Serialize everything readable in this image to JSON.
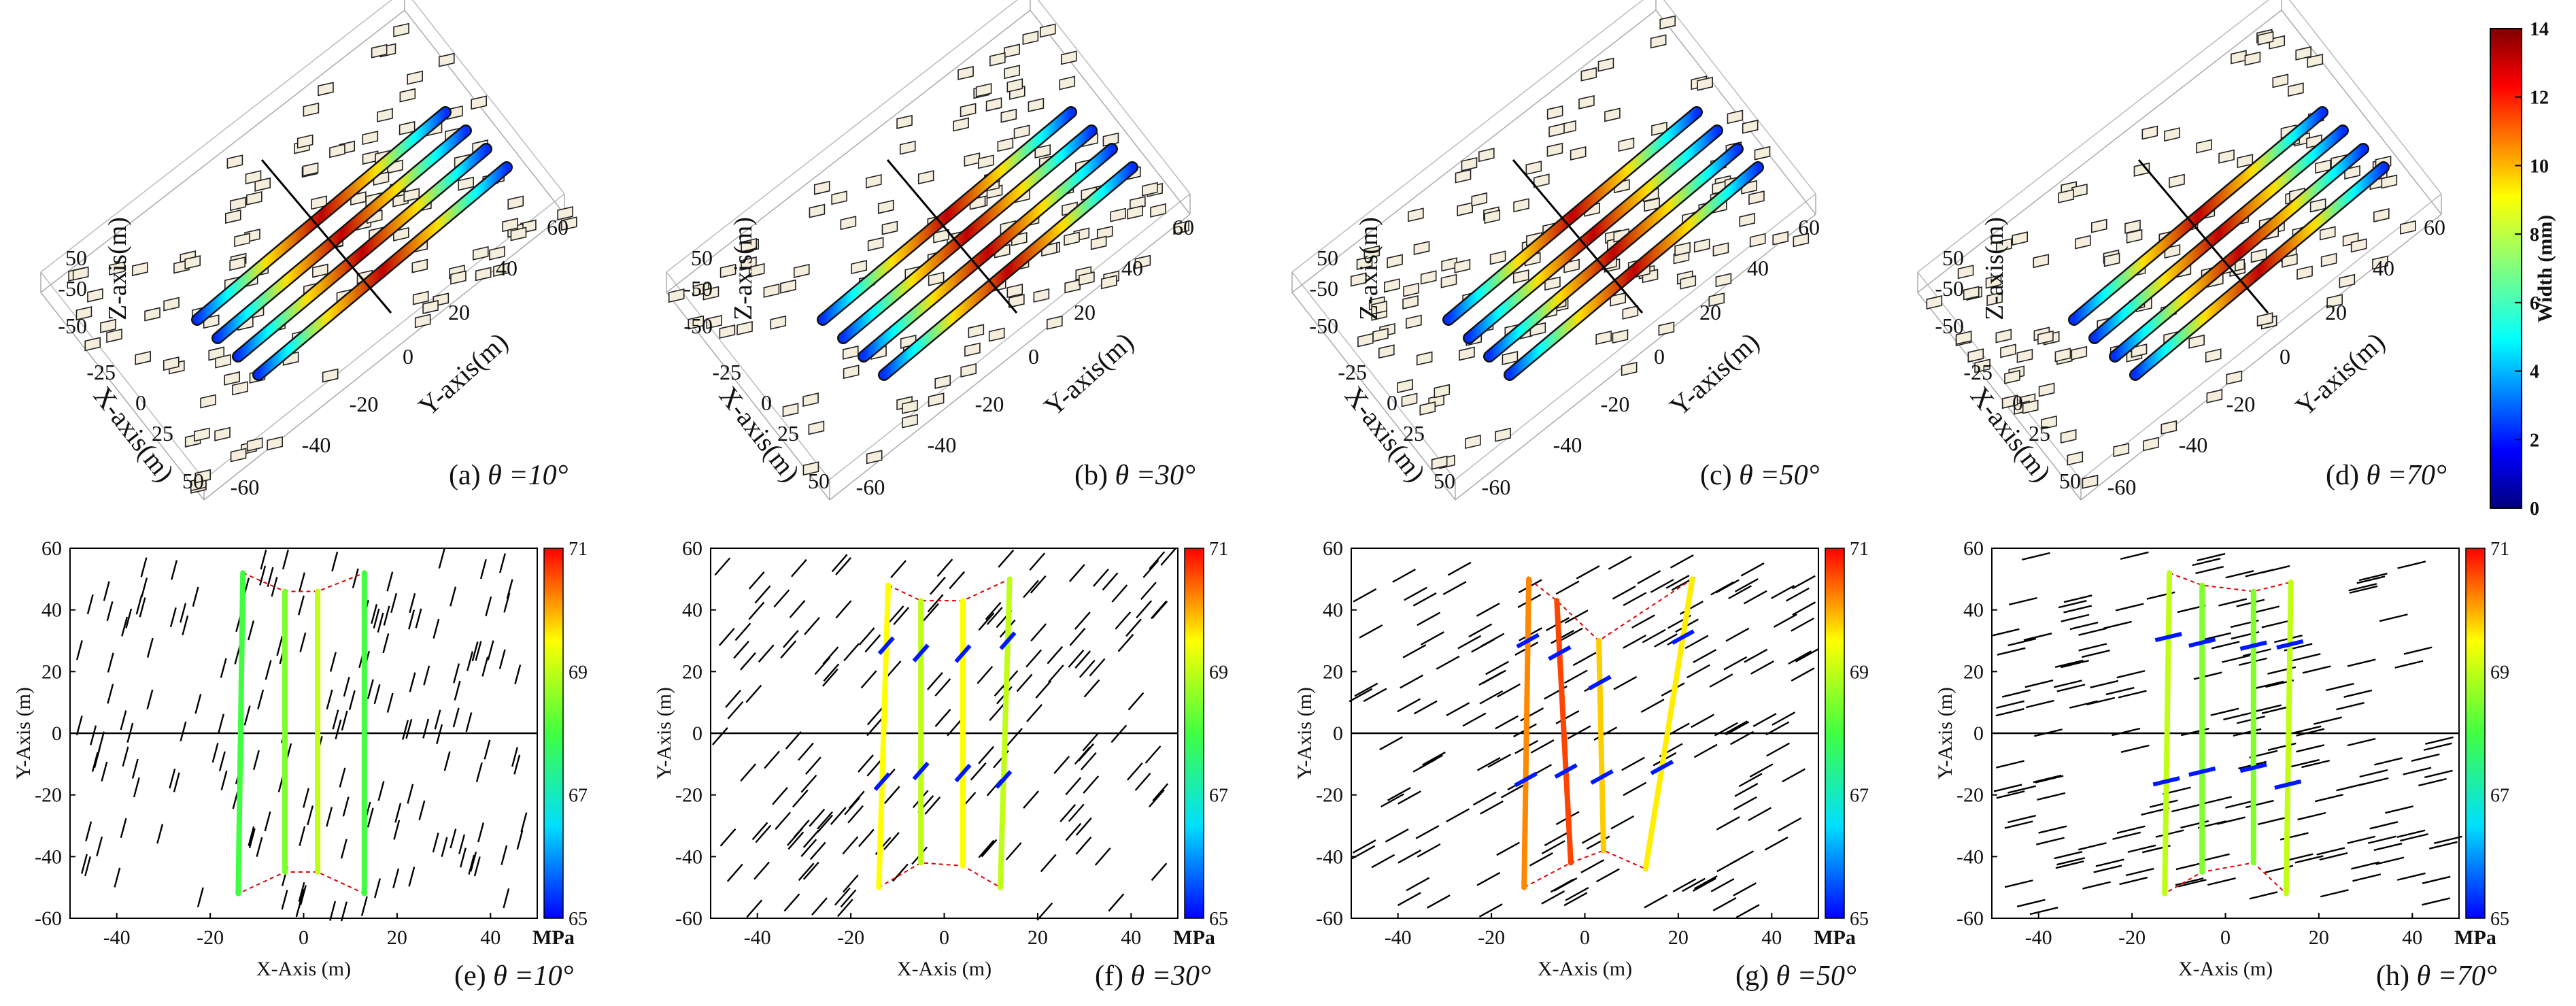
{
  "figure": {
    "description_shown": false
  },
  "chart_data": [
    {
      "type": "3d-fracture",
      "id": "a",
      "caption_label": "(a)",
      "caption_theta": "θ =10°",
      "theta_deg": 10,
      "xlabel": "X-axis(m)",
      "ylabel": "Y-axis(m)",
      "zlabel": "Z-axis(m)",
      "x_ticks": [
        "-25",
        "0",
        "25",
        "50"
      ],
      "y_ticks": [
        "-60",
        "-40",
        "-20",
        "0",
        "20",
        "40",
        "60"
      ],
      "z_ticks": [
        "50",
        "-50",
        "-50"
      ],
      "fracture_count": 4
    },
    {
      "type": "3d-fracture",
      "id": "b",
      "caption_label": "(b)",
      "caption_theta": "θ =30°",
      "theta_deg": 30,
      "xlabel": "X-axis(m)",
      "ylabel": "Y-axis(m)",
      "zlabel": "Z-axis(m)",
      "x_ticks": [
        "-25",
        "0",
        "25",
        "50"
      ],
      "y_ticks": [
        "-60",
        "-40",
        "-20",
        "0",
        "20",
        "40",
        "60"
      ],
      "z_ticks": [
        "50",
        "-50",
        "-50"
      ],
      "fracture_count": 4
    },
    {
      "type": "3d-fracture",
      "id": "c",
      "caption_label": "(c)",
      "caption_theta": "θ =50°",
      "theta_deg": 50,
      "xlabel": "X-axis(m)",
      "ylabel": "Y-axis(m)",
      "zlabel": "Z-axis(m)",
      "x_ticks": [
        "-25",
        "0",
        "25",
        "50"
      ],
      "y_ticks": [
        "-60",
        "-40",
        "-20",
        "0",
        "20",
        "40",
        "60"
      ],
      "z_ticks": [
        "50",
        "-50",
        "-50"
      ],
      "fracture_count": 4
    },
    {
      "type": "3d-fracture",
      "id": "d",
      "caption_label": "(d)",
      "caption_theta": "θ =70°",
      "theta_deg": 70,
      "xlabel": "X-axis(m)",
      "ylabel": "Y-axis(m)",
      "zlabel": "Z-axis(m)",
      "x_ticks": [
        "-25",
        "0",
        "25",
        "50"
      ],
      "y_ticks": [
        "-60",
        "-40",
        "-20",
        "0",
        "20",
        "40",
        "60"
      ],
      "z_ticks": [
        "50",
        "-50",
        "-50"
      ],
      "fracture_count": 4
    },
    {
      "type": "fracture-map",
      "id": "e",
      "caption_label": "(e)",
      "caption_theta": "θ =10°",
      "theta_deg": 10,
      "xlabel": "X-Axis (m)",
      "ylabel": "Y-Axis (m)",
      "xlim": [
        -50,
        50
      ],
      "ylim": [
        -60,
        60
      ],
      "x_ticks": [
        "-40",
        "-20",
        "0",
        "20",
        "40"
      ],
      "y_ticks": [
        "60",
        "40",
        "20",
        "0",
        "-20",
        "-40",
        "-60"
      ],
      "colorbar": {
        "ticks": [
          "71",
          "69",
          "67",
          "65"
        ],
        "min": 65,
        "max": 71,
        "unit": "MPa"
      },
      "fractures": [
        {
          "x_start": -14,
          "x_end": -13,
          "y_start": -52,
          "y_end": 52,
          "stress": 68
        },
        {
          "x_start": -4,
          "x_end": -4,
          "y_start": -45,
          "y_end": 46,
          "stress": 68.5
        },
        {
          "x_start": 3,
          "x_end": 3,
          "y_start": -45,
          "y_end": 46,
          "stress": 69
        },
        {
          "x_start": 13,
          "x_end": 13,
          "y_start": -52,
          "y_end": 52,
          "stress": 68
        }
      ]
    },
    {
      "type": "fracture-map",
      "id": "f",
      "caption_label": "(f)",
      "caption_theta": "θ =30°",
      "theta_deg": 30,
      "xlabel": "X-Axis (m)",
      "ylabel": "Y-Axis (m)",
      "xlim": [
        -50,
        50
      ],
      "ylim": [
        -60,
        60
      ],
      "x_ticks": [
        "-40",
        "-20",
        "0",
        "20",
        "40"
      ],
      "y_ticks": [
        "60",
        "40",
        "20",
        "0",
        "-20",
        "-40",
        "-60"
      ],
      "colorbar": {
        "ticks": [
          "71",
          "69",
          "67",
          "65"
        ],
        "min": 65,
        "max": 71,
        "unit": "MPa"
      },
      "fractures": [
        {
          "x_start": -14,
          "x_end": -12,
          "y_start": -50,
          "y_end": 48,
          "stress": 69.5
        },
        {
          "x_start": -5,
          "x_end": -5,
          "y_start": -42,
          "y_end": 43,
          "stress": 69
        },
        {
          "x_start": 4,
          "x_end": 4,
          "y_start": -43,
          "y_end": 43,
          "stress": 69.5
        },
        {
          "x_start": 12,
          "x_end": 14,
          "y_start": -50,
          "y_end": 50,
          "stress": 69
        }
      ]
    },
    {
      "type": "fracture-map",
      "id": "g",
      "caption_label": "(g)",
      "caption_theta": "θ =50°",
      "theta_deg": 50,
      "xlabel": "X-Axis (m)",
      "ylabel": "Y-Axis (m)",
      "xlim": [
        -50,
        50
      ],
      "ylim": [
        -60,
        60
      ],
      "x_ticks": [
        "-40",
        "-20",
        "0",
        "20",
        "40"
      ],
      "y_ticks": [
        "60",
        "40",
        "20",
        "0",
        "-20",
        "-40",
        "-60"
      ],
      "colorbar": {
        "ticks": [
          "71",
          "69",
          "67",
          "65"
        ],
        "min": 65,
        "max": 71,
        "unit": "MPa"
      },
      "fractures": [
        {
          "x_start": -13,
          "x_end": -12,
          "y_start": -50,
          "y_end": 50,
          "stress": 70.2
        },
        {
          "x_start": -3,
          "x_end": -6,
          "y_start": -42,
          "y_end": 43,
          "stress": 70.6
        },
        {
          "x_start": 4,
          "x_end": 3,
          "y_start": -38,
          "y_end": 30,
          "stress": 69.8
        },
        {
          "x_start": 13,
          "x_end": 23,
          "y_start": -44,
          "y_end": 50,
          "stress": 69.6
        }
      ]
    },
    {
      "type": "fracture-map",
      "id": "h",
      "caption_label": "(h)",
      "caption_theta": "θ =70°",
      "theta_deg": 70,
      "xlabel": "X-Axis (m)",
      "ylabel": "Y-Axis (m)",
      "xlim": [
        -50,
        50
      ],
      "ylim": [
        -60,
        60
      ],
      "x_ticks": [
        "-40",
        "-20",
        "0",
        "20",
        "40"
      ],
      "y_ticks": [
        "60",
        "40",
        "20",
        "0",
        "-20",
        "-40",
        "-60"
      ],
      "colorbar": {
        "ticks": [
          "71",
          "69",
          "67",
          "65"
        ],
        "min": 65,
        "max": 71,
        "unit": "MPa"
      },
      "fractures": [
        {
          "x_start": -13,
          "x_end": -12,
          "y_start": -52,
          "y_end": 52,
          "stress": 69
        },
        {
          "x_start": -5,
          "x_end": -5,
          "y_start": -45,
          "y_end": 48,
          "stress": 68.5
        },
        {
          "x_start": 6,
          "x_end": 6,
          "y_start": -42,
          "y_end": 46,
          "stress": 68.5
        },
        {
          "x_start": 13,
          "x_end": 14,
          "y_start": -52,
          "y_end": 49,
          "stress": 69
        }
      ]
    },
    {
      "type": "colorbar",
      "id": "width",
      "label": "Width (mm)",
      "ticks": [
        "14",
        "12",
        "10",
        "8",
        "6",
        "4",
        "2",
        "0"
      ],
      "min": 0,
      "max": 14
    }
  ]
}
